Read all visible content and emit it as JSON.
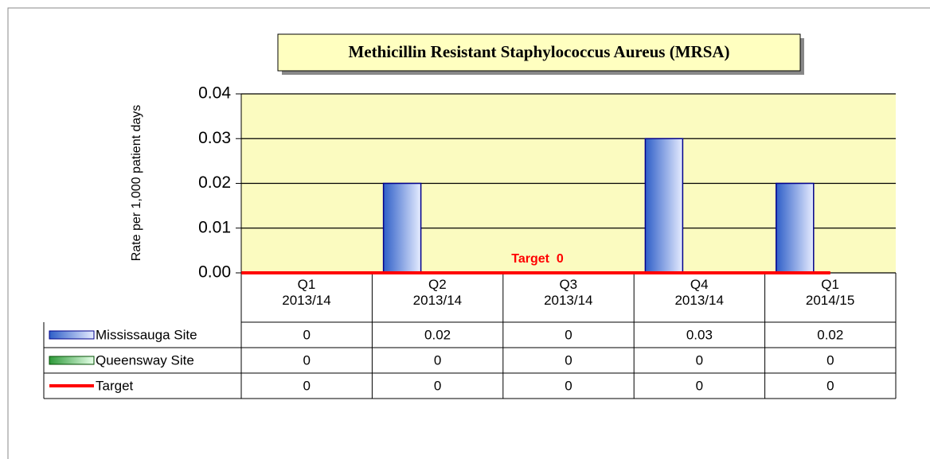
{
  "chart_data": {
    "type": "bar",
    "title": "Methicillin Resistant Staphylococcus Aureus (MRSA)",
    "y_label": "Rate per 1,000 patient days",
    "annotation": "Target  0",
    "categories": [
      "Q1\n2013/14",
      "Q2\n2013/14",
      "Q3\n2013/14",
      "Q4\n2013/14",
      "Q1\n2014/15"
    ],
    "series": [
      {
        "name": "Mississauga Site",
        "color": "#2f5fc8",
        "values": [
          0,
          0.02,
          0,
          0.03,
          0.02
        ]
      },
      {
        "name": "Queensway Site",
        "color": "#2e9a3a",
        "values": [
          0,
          0,
          0,
          0,
          0
        ]
      },
      {
        "name": "Target",
        "color": "#ff0000",
        "type": "line",
        "values": [
          0,
          0,
          0,
          0,
          0
        ]
      }
    ],
    "ylim": [
      0,
      0.04
    ],
    "yticks": [
      {
        "value": 0,
        "label": "0.00"
      },
      0.01,
      0.02,
      0.03,
      0.04
    ],
    "grid": true,
    "data_table": true
  }
}
